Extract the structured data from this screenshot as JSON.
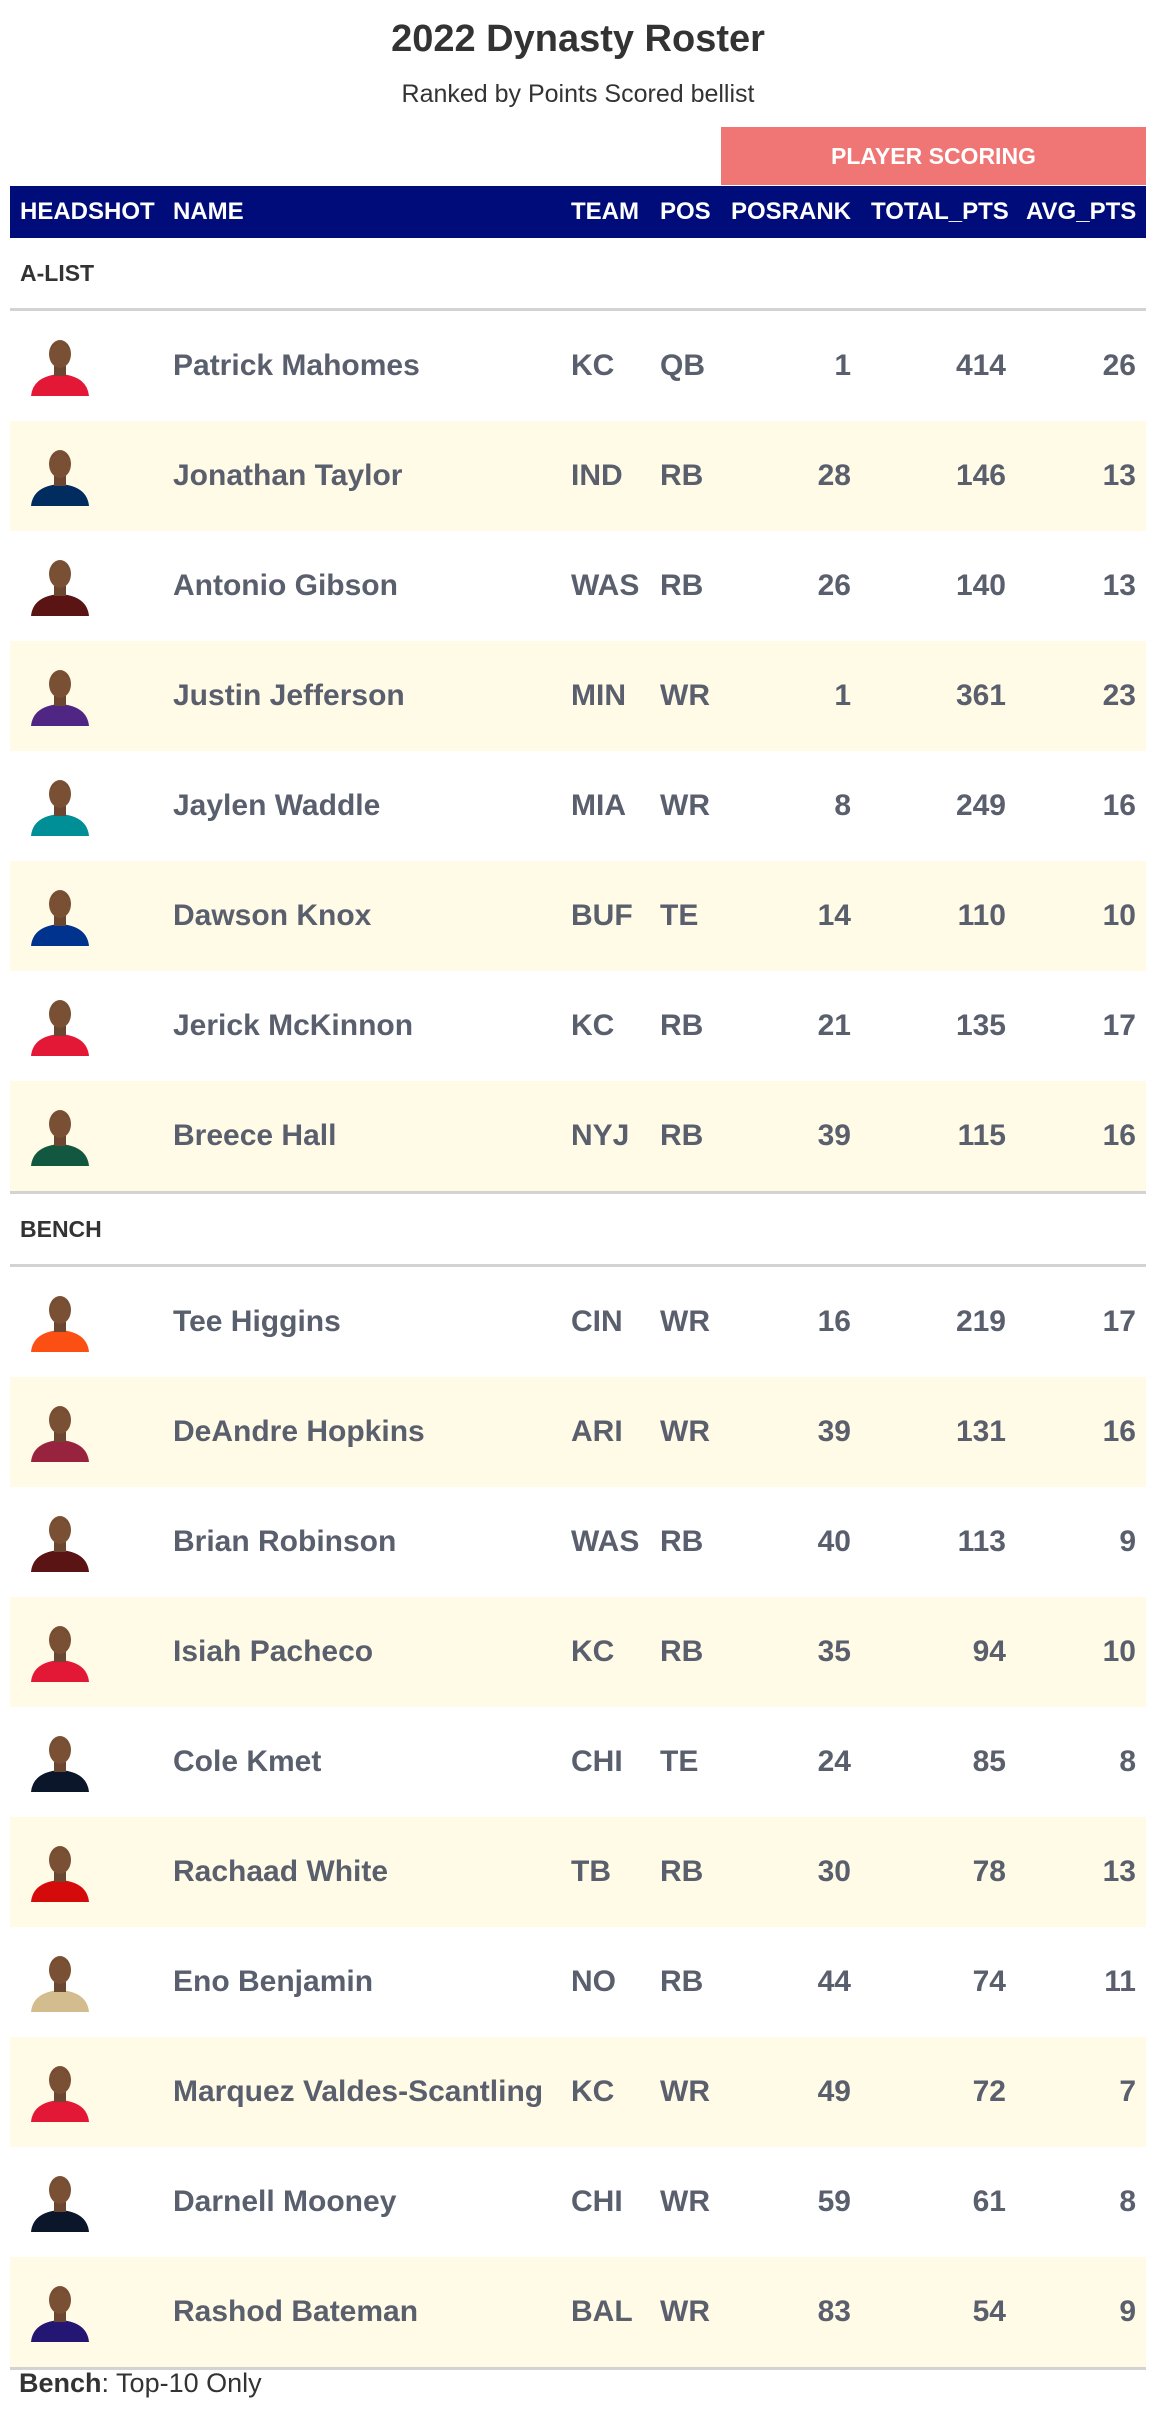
{
  "header": {
    "title": "2022 Dynasty Roster",
    "subtitle": "Ranked by Points Scored bellist",
    "spanner_label": "PLAYER SCORING"
  },
  "columns": [
    "HEADSHOT",
    "NAME",
    "TEAM",
    "POS",
    "POSRANK",
    "TOTAL_PTS",
    "AVG_PTS"
  ],
  "colors": {
    "header_bg": "#000c7a",
    "spanner_bg": "#f07676",
    "stripe_bg": "#fffbe6",
    "team_colors": {
      "KC": "#e31837",
      "IND": "#002c5f",
      "WAS": "#5a1414",
      "MIN": "#4f2683",
      "MIA": "#008e97",
      "BUF": "#00338d",
      "NYJ": "#125740",
      "CIN": "#fb4f14",
      "ARI": "#97233f",
      "CHI": "#0b162a",
      "TB": "#d50a0a",
      "NO": "#d3bc8d",
      "BAL": "#241773"
    }
  },
  "groups": [
    {
      "label": "A-LIST",
      "players": [
        {
          "name": "Patrick Mahomes",
          "team": "KC",
          "pos": "QB",
          "posrank": "1",
          "total_pts": "414",
          "avg_pts": "26"
        },
        {
          "name": "Jonathan Taylor",
          "team": "IND",
          "pos": "RB",
          "posrank": "28",
          "total_pts": "146",
          "avg_pts": "13"
        },
        {
          "name": "Antonio Gibson",
          "team": "WAS",
          "pos": "RB",
          "posrank": "26",
          "total_pts": "140",
          "avg_pts": "13"
        },
        {
          "name": "Justin Jefferson",
          "team": "MIN",
          "pos": "WR",
          "posrank": "1",
          "total_pts": "361",
          "avg_pts": "23"
        },
        {
          "name": "Jaylen Waddle",
          "team": "MIA",
          "pos": "WR",
          "posrank": "8",
          "total_pts": "249",
          "avg_pts": "16"
        },
        {
          "name": "Dawson Knox",
          "team": "BUF",
          "pos": "TE",
          "posrank": "14",
          "total_pts": "110",
          "avg_pts": "10"
        },
        {
          "name": "Jerick McKinnon",
          "team": "KC",
          "pos": "RB",
          "posrank": "21",
          "total_pts": "135",
          "avg_pts": "17"
        },
        {
          "name": "Breece Hall",
          "team": "NYJ",
          "pos": "RB",
          "posrank": "39",
          "total_pts": "115",
          "avg_pts": "16"
        }
      ]
    },
    {
      "label": "BENCH",
      "players": [
        {
          "name": "Tee Higgins",
          "team": "CIN",
          "pos": "WR",
          "posrank": "16",
          "total_pts": "219",
          "avg_pts": "17"
        },
        {
          "name": "DeAndre Hopkins",
          "team": "ARI",
          "pos": "WR",
          "posrank": "39",
          "total_pts": "131",
          "avg_pts": "16"
        },
        {
          "name": "Brian Robinson",
          "team": "WAS",
          "pos": "RB",
          "posrank": "40",
          "total_pts": "113",
          "avg_pts": "9"
        },
        {
          "name": "Isiah Pacheco",
          "team": "KC",
          "pos": "RB",
          "posrank": "35",
          "total_pts": "94",
          "avg_pts": "10"
        },
        {
          "name": "Cole Kmet",
          "team": "CHI",
          "pos": "TE",
          "posrank": "24",
          "total_pts": "85",
          "avg_pts": "8"
        },
        {
          "name": "Rachaad White",
          "team": "TB",
          "pos": "RB",
          "posrank": "30",
          "total_pts": "78",
          "avg_pts": "13"
        },
        {
          "name": "Eno Benjamin",
          "team": "NO",
          "pos": "RB",
          "posrank": "44",
          "total_pts": "74",
          "avg_pts": "11"
        },
        {
          "name": "Marquez Valdes-Scantling",
          "team": "KC",
          "pos": "WR",
          "posrank": "49",
          "total_pts": "72",
          "avg_pts": "7"
        },
        {
          "name": "Darnell Mooney",
          "team": "CHI",
          "pos": "WR",
          "posrank": "59",
          "total_pts": "61",
          "avg_pts": "8"
        },
        {
          "name": "Rashod Bateman",
          "team": "BAL",
          "pos": "WR",
          "posrank": "83",
          "total_pts": "54",
          "avg_pts": "9"
        }
      ]
    }
  ],
  "footnote": {
    "bold": "Bench",
    "text": ": Top-10 Only"
  }
}
